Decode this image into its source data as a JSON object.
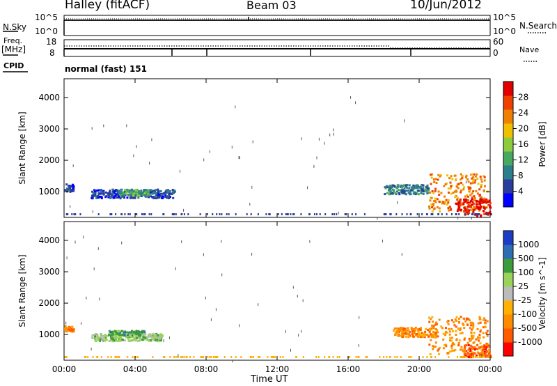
{
  "header": {
    "station": "Halley (fitACF)",
    "beam": "Beam 03",
    "date": "10/Jun/2012"
  },
  "top_panels": {
    "nsky_label": "N.Sky",
    "nsky_ticks": [
      "10^5",
      "10^0"
    ],
    "nsearch_label": "N.Search",
    "nsearch_ticks": [
      "10^5",
      "10^0"
    ],
    "freq_label": "Freq.",
    "freq_unit": "[MHz]",
    "freq_ticks": [
      "18",
      "8"
    ],
    "nave_label": "Nave",
    "nave_ticks": [
      "60",
      "0"
    ],
    "cpid_label": "CPID",
    "cpid_value": "normal (fast) 151"
  },
  "colors": {
    "power_scale": [
      "#0000ff",
      "#2c3c9c",
      "#2e7d8c",
      "#48a860",
      "#8ccc3c",
      "#f0c000",
      "#f08000",
      "#f04000",
      "#e00000"
    ],
    "velocity_scale": [
      "#ff0000",
      "#ff5a00",
      "#ff8c00",
      "#ffb000",
      "#bbbbbb",
      "#99d35a",
      "#3c9c3c",
      "#2e6cb4",
      "#1c3cc4"
    ]
  },
  "chart_data": [
    {
      "type": "heatmap",
      "name": "power",
      "ylabel": "Slant Range [km]",
      "yticks": [
        "1000",
        "2000",
        "3000",
        "4000"
      ],
      "xticks": [
        "00:00",
        "04:00",
        "08:00",
        "12:00",
        "16:00",
        "20:00",
        "00:00"
      ],
      "xlim_hours": [
        0,
        24
      ],
      "ylim_km": [
        180,
        4600
      ],
      "colorbar_label": "Power [dB]",
      "colorbar_ticks": [
        "4",
        "8",
        "12",
        "16",
        "20",
        "24",
        "28"
      ],
      "regions": [
        {
          "t0": 0.0,
          "t1": 0.5,
          "r0": 1000,
          "r1": 1300,
          "c": 1
        },
        {
          "t0": 1.5,
          "t1": 6.2,
          "r0": 820,
          "r1": 1100,
          "c": 1
        },
        {
          "t0": 3.0,
          "t1": 4.8,
          "r0": 900,
          "r1": 1100,
          "c": 3
        },
        {
          "t0": 18.0,
          "t1": 20.5,
          "r0": 950,
          "r1": 1250,
          "c": 2
        },
        {
          "t0": 20.5,
          "t1": 23.8,
          "r0": 400,
          "r1": 1600,
          "c": 6
        },
        {
          "t0": 22.0,
          "t1": 24.0,
          "r0": 250,
          "r1": 800,
          "c": 8
        }
      ]
    },
    {
      "type": "heatmap",
      "name": "velocity",
      "ylabel": "Slant Range [km]",
      "yticks": [
        "1000",
        "2000",
        "3000",
        "4000"
      ],
      "xticks": [
        "00:00",
        "04:00",
        "08:00",
        "12:00",
        "16:00",
        "20:00",
        "00:00"
      ],
      "xlim_hours": [
        0,
        24
      ],
      "ylim_km": [
        180,
        4600
      ],
      "colorbar_label": "Velocity [m s^-1]",
      "colorbar_ticks": [
        "-1000",
        "-500",
        "-100",
        "-25",
        "25",
        "100",
        "500",
        "1000"
      ],
      "regions": [
        {
          "t0": 0.0,
          "t1": 0.5,
          "r0": 1100,
          "r1": 1300,
          "c": 2
        },
        {
          "t0": 1.5,
          "t1": 5.5,
          "r0": 820,
          "r1": 1050,
          "c": 5
        },
        {
          "t0": 2.5,
          "t1": 4.5,
          "r0": 1000,
          "r1": 1150,
          "c": 6
        },
        {
          "t0": 18.5,
          "t1": 21.0,
          "r0": 950,
          "r1": 1250,
          "c": 2
        },
        {
          "t0": 20.5,
          "t1": 23.8,
          "r0": 400,
          "r1": 1600,
          "c": 2
        },
        {
          "t0": 22.5,
          "t1": 24.0,
          "r0": 300,
          "r1": 700,
          "c": 1
        }
      ]
    }
  ],
  "xaxis_label": "Time UT"
}
